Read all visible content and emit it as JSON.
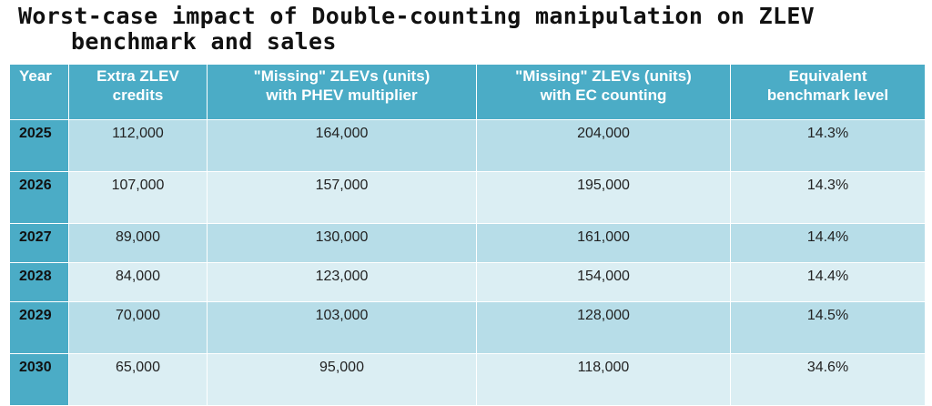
{
  "title": {
    "line1": "Worst-case impact of Double-counting manipulation on ZLEV",
    "line2": "benchmark and sales"
  },
  "table": {
    "headers": {
      "year": "Year",
      "credits": [
        "Extra ZLEV",
        "credits"
      ],
      "phev": [
        "\"Missing\" ZLEVs (units)",
        "with PHEV multiplier"
      ],
      "ec": [
        "\"Missing\" ZLEVs (units)",
        "with EC counting"
      ],
      "benchmark": [
        "Equivalent",
        "benchmark level"
      ]
    },
    "rows": [
      {
        "year": "2025",
        "credits": "112,000",
        "phev": "164,000",
        "ec": "204,000",
        "benchmark": "14.3%"
      },
      {
        "year": "2026",
        "credits": "107,000",
        "phev": "157,000",
        "ec": "195,000",
        "benchmark": "14.3%"
      },
      {
        "year": "2027",
        "credits": "89,000",
        "phev": "130,000",
        "ec": "161,000",
        "benchmark": "14.4%"
      },
      {
        "year": "2028",
        "credits": "84,000",
        "phev": "123,000",
        "ec": "154,000",
        "benchmark": "14.4%"
      },
      {
        "year": "2029",
        "credits": "70,000",
        "phev": "103,000",
        "ec": "128,000",
        "benchmark": "14.5%"
      },
      {
        "year": "2030",
        "credits": "65,000",
        "phev": "95,000",
        "ec": "118,000",
        "benchmark": "34.6%"
      }
    ]
  },
  "colors": {
    "header": "#4bacc6",
    "row_dark": "#b7dde8",
    "row_light": "#dbeef3"
  }
}
